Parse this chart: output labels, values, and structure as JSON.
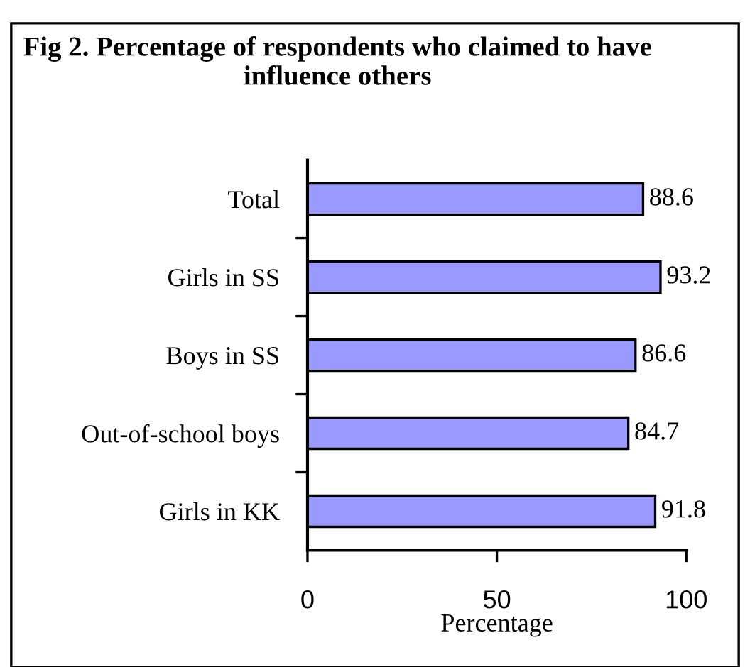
{
  "chart_data": {
    "type": "bar",
    "orientation": "horizontal",
    "title": "Fig 2. Percentage of respondents who claimed to have influence others",
    "xlabel": "Percentage",
    "categories": [
      "Total",
      "Girls in SS",
      "Boys in SS",
      "Out-of-school boys",
      "Girls in KK"
    ],
    "values": [
      88.6,
      93.2,
      86.6,
      84.7,
      91.8
    ],
    "color": "#9999ff",
    "xlim": [
      0,
      100
    ],
    "xticks": [
      0,
      50,
      100
    ],
    "data_labels": true,
    "grid": false,
    "legend": false
  }
}
